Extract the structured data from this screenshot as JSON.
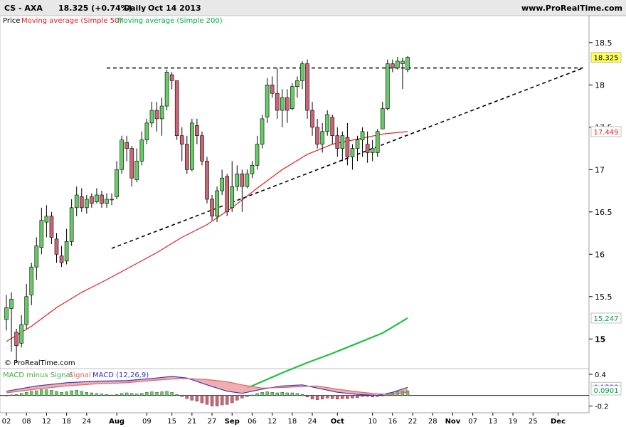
{
  "header": {
    "instrument": "CS - AXA",
    "quote": "18.325 (+0.74%)",
    "period": "Daily",
    "date": "Oct 14 2013",
    "site": "www.ProRealTime.com"
  },
  "legend": {
    "price": "Price",
    "ma50": "Moving average (Simple 50)",
    "ma200": "Moving average (Simple 200)"
  },
  "watermark": "© ProRealTime.com",
  "macd_legend": {
    "hist": "MACD minus Signal",
    "signal": "Signal",
    "macd": "MACD (12,26,9)"
  },
  "colors": {
    "up": "#66cc66",
    "down": "#cc6677",
    "ma50": "#e02020",
    "ma200": "#20c040",
    "macd": "#3333cc",
    "signal": "#dd6666",
    "fill": "#f0a0a0"
  },
  "chart_data": {
    "type": "candlestick",
    "price_axis": {
      "ticks": [
        "18.5",
        "18",
        "17.5",
        "17",
        "16.5",
        "16",
        "15.5",
        "15"
      ],
      "ylim": [
        14.7,
        18.7
      ]
    },
    "price_labels": [
      {
        "value": 18.325,
        "label": "18.325",
        "bg": "#ffff55",
        "fg": "#000000"
      },
      {
        "value": 17.449,
        "label": "17.449",
        "bg": "#ffffff",
        "fg": "#e02020"
      },
      {
        "value": 15.247,
        "label": "15.247",
        "bg": "#ffffff",
        "fg": "#00a040"
      }
    ],
    "macd_axis": {
      "ticks": [
        "0.4",
        "-0.2"
      ],
      "ylim": [
        -0.3,
        0.48
      ]
    },
    "macd_labels": [
      {
        "value": 0.1528,
        "label": "0.1528",
        "bg": "#ffffff",
        "fg": "#3333cc"
      },
      {
        "value": 0.0901,
        "label": "0.0901",
        "bg": "#ffffff",
        "fg": "#00a040"
      }
    ],
    "x_axis": {
      "labels": [
        {
          "i": 0,
          "text": "02",
          "bold": false
        },
        {
          "i": 4,
          "text": "08",
          "bold": false
        },
        {
          "i": 8,
          "text": "12",
          "bold": false
        },
        {
          "i": 12,
          "text": "18",
          "bold": false
        },
        {
          "i": 16,
          "text": "24",
          "bold": false
        },
        {
          "i": 22,
          "text": "Aug",
          "bold": true
        },
        {
          "i": 28,
          "text": "09",
          "bold": false
        },
        {
          "i": 33,
          "text": "15",
          "bold": false
        },
        {
          "i": 37,
          "text": "21",
          "bold": false
        },
        {
          "i": 41,
          "text": "27",
          "bold": false
        },
        {
          "i": 45,
          "text": "Sep",
          "bold": true
        },
        {
          "i": 49,
          "text": "06",
          "bold": false
        },
        {
          "i": 53,
          "text": "12",
          "bold": false
        },
        {
          "i": 57,
          "text": "18",
          "bold": false
        },
        {
          "i": 61,
          "text": "24",
          "bold": false
        },
        {
          "i": 66,
          "text": "Oct",
          "bold": true
        },
        {
          "i": 73,
          "text": "10",
          "bold": false
        },
        {
          "i": 77,
          "text": "16",
          "bold": false
        },
        {
          "i": 81,
          "text": "22",
          "bold": false
        },
        {
          "i": 85,
          "text": "28",
          "bold": false
        },
        {
          "i": 89,
          "text": "Nov",
          "bold": true
        },
        {
          "i": 93,
          "text": "07",
          "bold": false
        },
        {
          "i": 97,
          "text": "13",
          "bold": false
        },
        {
          "i": 101,
          "text": "19",
          "bold": false
        },
        {
          "i": 105,
          "text": "25",
          "bold": false
        },
        {
          "i": 110,
          "text": "Dec",
          "bold": true
        }
      ]
    },
    "candles": [
      [
        15.23,
        15.37,
        15.52,
        15.1
      ],
      [
        15.36,
        15.47,
        15.55,
        14.85
      ],
      [
        15.08,
        14.92,
        15.12,
        14.72
      ],
      [
        14.95,
        15.17,
        15.28,
        14.9
      ],
      [
        15.17,
        15.5,
        15.65,
        15.12
      ],
      [
        15.52,
        15.85,
        15.9,
        15.4
      ],
      [
        15.85,
        16.1,
        16.2,
        15.7
      ],
      [
        16.08,
        16.4,
        16.55,
        16.0
      ],
      [
        16.38,
        16.45,
        16.58,
        16.2
      ],
      [
        16.45,
        16.2,
        16.5,
        16.12
      ],
      [
        16.18,
        16.0,
        16.25,
        15.9
      ],
      [
        15.98,
        15.9,
        16.1,
        15.85
      ],
      [
        15.92,
        16.15,
        16.3,
        15.88
      ],
      [
        16.15,
        16.55,
        16.65,
        16.1
      ],
      [
        16.55,
        16.7,
        16.8,
        16.45
      ],
      [
        16.68,
        16.55,
        16.78,
        16.5
      ],
      [
        16.55,
        16.65,
        16.7,
        16.48
      ],
      [
        16.68,
        16.6,
        16.72,
        16.55
      ],
      [
        16.62,
        16.7,
        16.78,
        16.6
      ],
      [
        16.7,
        16.6,
        16.75,
        16.55
      ],
      [
        16.6,
        16.65,
        16.72,
        16.55
      ],
      [
        16.65,
        16.65,
        16.72,
        16.58
      ],
      [
        16.68,
        17.0,
        17.1,
        16.65
      ],
      [
        17.0,
        17.35,
        17.4,
        16.95
      ],
      [
        17.32,
        17.25,
        17.4,
        17.1
      ],
      [
        17.25,
        16.9,
        17.28,
        16.8
      ],
      [
        16.88,
        17.1,
        17.25,
        16.85
      ],
      [
        17.1,
        17.35,
        17.45,
        17.05
      ],
      [
        17.35,
        17.55,
        17.6,
        17.3
      ],
      [
        17.55,
        17.7,
        17.8,
        17.5
      ],
      [
        17.7,
        17.6,
        17.8,
        17.45
      ],
      [
        17.6,
        17.75,
        17.85,
        17.4
      ],
      [
        17.75,
        18.15,
        18.18,
        17.7
      ],
      [
        18.12,
        18.05,
        18.15,
        17.95
      ],
      [
        18.05,
        17.4,
        18.0,
        17.35
      ],
      [
        17.4,
        17.3,
        17.5,
        17.1
      ],
      [
        17.3,
        17.0,
        17.4,
        16.95
      ],
      [
        17.0,
        17.55,
        17.6,
        16.98
      ],
      [
        17.52,
        17.4,
        17.6,
        17.3
      ],
      [
        17.4,
        17.1,
        17.45,
        17.05
      ],
      [
        17.1,
        16.65,
        17.15,
        16.6
      ],
      [
        16.65,
        16.45,
        16.7,
        16.4
      ],
      [
        16.45,
        16.75,
        16.8,
        16.38
      ],
      [
        16.75,
        16.9,
        17.0,
        16.7
      ],
      [
        16.92,
        16.5,
        16.95,
        16.45
      ],
      [
        16.55,
        16.8,
        17.1,
        16.5
      ],
      [
        16.8,
        16.95,
        17.05,
        16.75
      ],
      [
        16.95,
        16.8,
        17.0,
        16.5
      ],
      [
        16.8,
        16.95,
        17.0,
        16.78
      ],
      [
        16.95,
        17.05,
        17.1,
        16.9
      ],
      [
        17.05,
        17.3,
        17.4,
        17.0
      ],
      [
        17.3,
        17.6,
        17.65,
        17.25
      ],
      [
        17.62,
        18.0,
        18.08,
        17.55
      ],
      [
        18.0,
        17.9,
        18.1,
        17.85
      ],
      [
        17.9,
        17.7,
        18.2,
        17.6
      ],
      [
        17.7,
        17.85,
        17.95,
        17.5
      ],
      [
        17.85,
        17.7,
        17.95,
        17.55
      ],
      [
        17.72,
        17.98,
        18.02,
        17.7
      ],
      [
        17.98,
        18.05,
        18.1,
        17.85
      ],
      [
        18.05,
        18.25,
        18.28,
        17.95
      ],
      [
        18.25,
        17.7,
        18.3,
        17.6
      ],
      [
        17.7,
        17.5,
        17.8,
        17.4
      ],
      [
        17.5,
        17.3,
        17.6,
        17.25
      ],
      [
        17.3,
        17.45,
        17.55,
        17.2
      ],
      [
        17.45,
        17.65,
        17.7,
        17.4
      ],
      [
        17.62,
        17.4,
        17.65,
        17.3
      ],
      [
        17.4,
        17.25,
        17.5,
        17.15
      ],
      [
        17.25,
        17.4,
        17.45,
        17.1
      ],
      [
        17.38,
        17.15,
        17.55,
        17.05
      ],
      [
        17.15,
        17.25,
        17.3,
        17.0
      ],
      [
        17.25,
        17.35,
        17.4,
        17.1
      ],
      [
        17.35,
        17.45,
        17.5,
        17.15
      ],
      [
        17.3,
        17.2,
        17.45,
        17.08
      ],
      [
        17.2,
        17.25,
        17.35,
        17.1
      ],
      [
        17.2,
        17.45,
        17.48,
        17.15
      ],
      [
        17.48,
        17.72,
        17.8,
        17.55
      ],
      [
        17.72,
        18.25,
        18.3,
        17.7
      ],
      [
        18.25,
        18.2,
        18.3,
        18.15
      ],
      [
        18.2,
        18.28,
        18.33,
        18.18
      ],
      [
        18.25,
        18.28,
        18.32,
        17.95
      ],
      [
        18.18,
        18.325,
        18.34,
        18.15
      ]
    ],
    "ma50": [
      [
        0,
        14.97
      ],
      [
        5,
        15.15
      ],
      [
        10,
        15.37
      ],
      [
        15,
        15.55
      ],
      [
        20,
        15.7
      ],
      [
        25,
        15.86
      ],
      [
        30,
        16.02
      ],
      [
        35,
        16.2
      ],
      [
        40,
        16.35
      ],
      [
        45,
        16.55
      ],
      [
        50,
        16.78
      ],
      [
        55,
        17.0
      ],
      [
        60,
        17.18
      ],
      [
        65,
        17.3
      ],
      [
        70,
        17.36
      ],
      [
        75,
        17.42
      ],
      [
        80,
        17.449
      ]
    ],
    "ma200": [
      [
        48,
        14.42
      ],
      [
        55,
        14.6
      ],
      [
        60,
        14.72
      ],
      [
        65,
        14.83
      ],
      [
        70,
        14.95
      ],
      [
        75,
        15.07
      ],
      [
        80,
        15.247
      ]
    ],
    "macd_hist": [
      0.0,
      0.01,
      0.02,
      0.04,
      0.06,
      0.08,
      0.09,
      0.11,
      0.11,
      0.1,
      0.08,
      0.06,
      0.07,
      0.09,
      0.1,
      0.08,
      0.06,
      0.05,
      0.04,
      0.03,
      0.02,
      0.01,
      0.02,
      0.04,
      0.05,
      0.04,
      0.03,
      0.04,
      0.06,
      0.07,
      0.06,
      0.07,
      0.08,
      0.06,
      0.02,
      -0.02,
      -0.06,
      -0.09,
      -0.11,
      -0.14,
      -0.17,
      -0.2,
      -0.2,
      -0.18,
      -0.17,
      -0.14,
      -0.09,
      -0.05,
      -0.02,
      0.01,
      0.04,
      0.06,
      0.07,
      0.06,
      0.05,
      0.06,
      0.05,
      0.05,
      0.04,
      0.02,
      -0.03,
      -0.07,
      -0.08,
      -0.07,
      -0.05,
      -0.06,
      -0.07,
      -0.06,
      -0.06,
      -0.05,
      -0.04,
      -0.02,
      -0.02,
      -0.03,
      -0.02,
      0.0,
      0.03,
      0.05,
      0.07,
      0.08,
      0.0901
    ],
    "macd_line": [
      [
        0,
        0.08
      ],
      [
        6,
        0.18
      ],
      [
        12,
        0.24
      ],
      [
        18,
        0.27
      ],
      [
        24,
        0.28
      ],
      [
        30,
        0.33
      ],
      [
        33,
        0.36
      ],
      [
        36,
        0.33
      ],
      [
        40,
        0.2
      ],
      [
        44,
        0.08
      ],
      [
        47,
        0.04
      ],
      [
        51,
        0.12
      ],
      [
        55,
        0.18
      ],
      [
        59,
        0.2
      ],
      [
        62,
        0.14
      ],
      [
        66,
        0.06
      ],
      [
        70,
        0.02
      ],
      [
        74,
        0.0
      ],
      [
        77,
        0.06
      ],
      [
        80,
        0.1528
      ]
    ],
    "signal_line": [
      [
        0,
        0.05
      ],
      [
        6,
        0.12
      ],
      [
        12,
        0.18
      ],
      [
        18,
        0.22
      ],
      [
        24,
        0.24
      ],
      [
        30,
        0.29
      ],
      [
        33,
        0.31
      ],
      [
        36,
        0.32
      ],
      [
        40,
        0.3
      ],
      [
        44,
        0.26
      ],
      [
        47,
        0.2
      ],
      [
        51,
        0.14
      ],
      [
        55,
        0.15
      ],
      [
        59,
        0.17
      ],
      [
        62,
        0.18
      ],
      [
        66,
        0.12
      ],
      [
        70,
        0.07
      ],
      [
        74,
        0.03
      ],
      [
        77,
        0.02
      ],
      [
        80,
        0.06
      ]
    ],
    "trendlines": [
      {
        "name": "resistance",
        "from": [
          20,
          18.2
        ],
        "to": [
          115,
          18.2
        ]
      },
      {
        "name": "support",
        "from": [
          21,
          16.07
        ],
        "to": [
          115,
          18.2
        ]
      }
    ]
  }
}
